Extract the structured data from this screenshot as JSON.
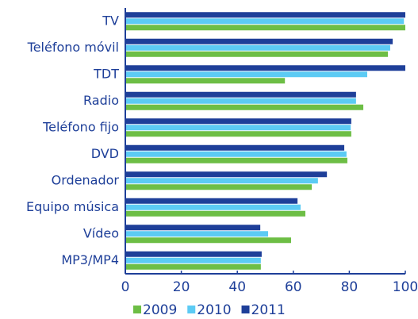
{
  "chart_data": {
    "type": "hbar",
    "categories": [
      "TV",
      "Teléfono móvil",
      "TDT",
      "Radio",
      "Teléfono fijo",
      "DVD",
      "Ordenador",
      "Equipo música",
      "Vídeo",
      "MP3/MP4"
    ],
    "series": [
      {
        "name": "2009",
        "color": "#6dbe45",
        "values": [
          100,
          93.8,
          57,
          85,
          80.7,
          79.3,
          66.6,
          64.3,
          59.2,
          48.4
        ]
      },
      {
        "name": "2010",
        "color": "#5ccbf4",
        "values": [
          99.5,
          94.6,
          86.4,
          82.4,
          80.5,
          79,
          68.8,
          62.6,
          51,
          48.4
        ]
      },
      {
        "name": "2011",
        "color": "#1e3f99",
        "values": [
          100,
          95.5,
          100,
          82.4,
          80.7,
          78.2,
          72,
          61.5,
          48.2,
          48.7
        ]
      }
    ],
    "xlim": [
      0,
      100
    ],
    "xticks": [
      0,
      20,
      40,
      60,
      80,
      100
    ],
    "legend": "bottom"
  }
}
